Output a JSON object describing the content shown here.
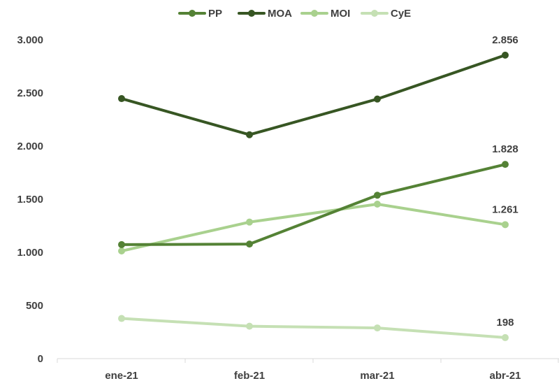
{
  "chart_data": {
    "type": "line",
    "categories": [
      "ene-21",
      "feb-21",
      "mar-21",
      "abr-21"
    ],
    "ylim": [
      0,
      3000
    ],
    "yticks": [
      0,
      500,
      1000,
      1500,
      2000,
      2500,
      3000
    ],
    "ytick_labels": [
      "0",
      "500",
      "1.000",
      "1.500",
      "2.000",
      "2.500",
      "3.000"
    ],
    "grid": false,
    "legend_position": "top-center",
    "series": [
      {
        "name": "PP",
        "color": "#548235",
        "values": [
          1073,
          1078,
          1538,
          1828
        ],
        "labels": [
          "",
          "",
          "",
          "1.828"
        ]
      },
      {
        "name": "MOA",
        "color": "#375623",
        "values": [
          2447,
          2107,
          2443,
          2856
        ],
        "labels": [
          "",
          "",
          "",
          "2.856"
        ]
      },
      {
        "name": "MOI",
        "color": "#A9D18E",
        "values": [
          1013,
          1285,
          1454,
          1261
        ],
        "labels": [
          "",
          "",
          "",
          "1.261"
        ]
      },
      {
        "name": "CyE",
        "color": "#C5E0B4",
        "values": [
          378,
          305,
          289,
          198
        ],
        "labels": [
          "",
          "",
          "",
          "198"
        ]
      }
    ]
  }
}
